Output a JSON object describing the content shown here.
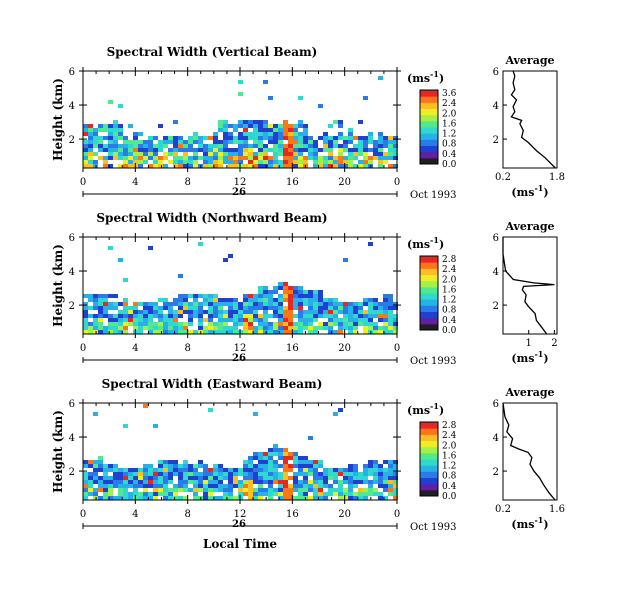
{
  "common": {
    "ylabel": "Height (km)",
    "xlabel": "Local Time",
    "unit_label": "(ms",
    "unit_exp": "-1",
    "unit_close": ")",
    "avg_title": "Average",
    "date_label": "Oct 1993",
    "day_label": "26",
    "colors": [
      "#202020",
      "#6020a0",
      "#2040d0",
      "#2a7ae8",
      "#28b0e8",
      "#30d8d0",
      "#50e890",
      "#a0f050",
      "#e8f028",
      "#f8c020",
      "#f87818",
      "#e82820"
    ]
  },
  "chart_data": [
    {
      "type": "heatmap",
      "title": "Spectral Width (Vertical Beam)",
      "x_ticks": [
        "0",
        "4",
        "8",
        "12",
        "16",
        "20",
        "0"
      ],
      "y_ticks": [
        "6",
        "4",
        "2"
      ],
      "xlim": [
        0,
        24
      ],
      "ylim": [
        0.3,
        6
      ],
      "colorbar_ticks": [
        "3.6",
        "2.4",
        "2.0",
        "1.6",
        "1.2",
        "0.8",
        "0.4",
        "0.0"
      ],
      "avg_x_ticks": [
        "0.2",
        "1.8"
      ],
      "avg_xlim": [
        0.2,
        1.8
      ],
      "avg_y_ticks": [
        "6",
        "4",
        "2"
      ],
      "avg_profile": [
        [
          1.75,
          0.3
        ],
        [
          1.6,
          0.6
        ],
        [
          1.45,
          0.9
        ],
        [
          1.2,
          1.3
        ],
        [
          0.95,
          1.8
        ],
        [
          0.75,
          2.1
        ],
        [
          0.8,
          2.5
        ],
        [
          0.7,
          2.9
        ],
        [
          0.75,
          3.1
        ],
        [
          0.45,
          3.3
        ],
        [
          0.55,
          3.6
        ],
        [
          0.5,
          3.9
        ],
        [
          0.6,
          4.3
        ],
        [
          0.45,
          4.6
        ],
        [
          0.55,
          4.9
        ],
        [
          0.5,
          5.3
        ],
        [
          0.55,
          5.7
        ],
        [
          0.5,
          6.0
        ]
      ]
    },
    {
      "type": "heatmap",
      "title": "Spectral Width (Northward Beam)",
      "x_ticks": [
        "0",
        "4",
        "8",
        "12",
        "16",
        "20",
        "0"
      ],
      "y_ticks": [
        "6",
        "4",
        "2"
      ],
      "xlim": [
        0,
        24
      ],
      "ylim": [
        0.3,
        6
      ],
      "colorbar_ticks": [
        "2.8",
        "2.4",
        "2.0",
        "1.6",
        "1.2",
        "0.8",
        "0.4",
        "0.0"
      ],
      "avg_x_ticks": [
        "1",
        "2"
      ],
      "avg_xlim": [
        0,
        2.1
      ],
      "avg_y_ticks": [
        "6",
        "4",
        "2"
      ],
      "avg_profile": [
        [
          1.7,
          0.3
        ],
        [
          1.5,
          0.7
        ],
        [
          1.3,
          1.1
        ],
        [
          1.25,
          1.5
        ],
        [
          1.0,
          1.9
        ],
        [
          0.85,
          2.2
        ],
        [
          0.9,
          2.6
        ],
        [
          0.75,
          2.9
        ],
        [
          0.8,
          3.1
        ],
        [
          2.0,
          3.2
        ],
        [
          1.2,
          3.3
        ],
        [
          0.4,
          3.5
        ],
        [
          0.1,
          4.0
        ],
        [
          0.05,
          4.5
        ],
        [
          0.0,
          5.0
        ],
        [
          0.0,
          6.0
        ]
      ]
    },
    {
      "type": "heatmap",
      "title": "Spectral Width (Eastward Beam)",
      "x_ticks": [
        "0",
        "4",
        "8",
        "12",
        "16",
        "20",
        "0"
      ],
      "y_ticks": [
        "6",
        "4",
        "2"
      ],
      "xlim": [
        0,
        24
      ],
      "ylim": [
        0.3,
        6
      ],
      "colorbar_ticks": [
        "2.8",
        "2.4",
        "2.0",
        "1.6",
        "1.2",
        "0.8",
        "0.4",
        "0.0"
      ],
      "avg_x_ticks": [
        "0.2",
        "1.6"
      ],
      "avg_xlim": [
        0.2,
        1.6
      ],
      "avg_y_ticks": [
        "6",
        "4",
        "2"
      ],
      "avg_profile": [
        [
          1.55,
          0.3
        ],
        [
          1.4,
          0.7
        ],
        [
          1.25,
          1.2
        ],
        [
          1.15,
          1.6
        ],
        [
          1.0,
          2.0
        ],
        [
          0.9,
          2.4
        ],
        [
          0.95,
          2.8
        ],
        [
          0.85,
          3.1
        ],
        [
          0.6,
          3.3
        ],
        [
          0.4,
          3.5
        ],
        [
          0.45,
          3.9
        ],
        [
          0.3,
          4.3
        ],
        [
          0.35,
          4.7
        ],
        [
          0.25,
          5.2
        ],
        [
          0.2,
          6.0
        ]
      ]
    }
  ]
}
